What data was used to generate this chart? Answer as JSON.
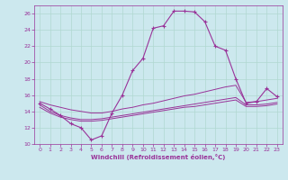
{
  "xlabel": "Windchill (Refroidissement éolien,°C)",
  "background_color": "#cce8ee",
  "grid_color": "#aaddcc",
  "line_color": "#993399",
  "xlim": [
    -0.5,
    23.5
  ],
  "ylim": [
    10,
    27
  ],
  "yticks": [
    10,
    12,
    14,
    16,
    18,
    20,
    22,
    24,
    26
  ],
  "xticks": [
    0,
    1,
    2,
    3,
    4,
    5,
    6,
    7,
    8,
    9,
    10,
    11,
    12,
    13,
    14,
    15,
    16,
    17,
    18,
    19,
    20,
    21,
    22,
    23
  ],
  "line1_x": [
    0,
    1,
    2,
    3,
    4,
    5,
    6,
    7,
    8,
    9,
    10,
    11,
    12,
    13,
    14,
    15,
    16,
    17,
    18,
    19,
    20,
    21,
    22,
    23
  ],
  "line1_y": [
    15.0,
    14.3,
    13.5,
    12.5,
    12.0,
    10.5,
    11.0,
    13.8,
    16.0,
    19.0,
    20.5,
    24.2,
    24.5,
    26.3,
    26.3,
    26.2,
    25.0,
    22.0,
    21.5,
    18.0,
    15.0,
    15.2,
    16.8,
    15.8
  ],
  "line2_x": [
    0,
    1,
    2,
    3,
    4,
    5,
    6,
    7,
    8,
    9,
    10,
    11,
    12,
    13,
    14,
    15,
    16,
    17,
    18,
    19,
    20,
    21,
    22,
    23
  ],
  "line2_y": [
    15.2,
    14.8,
    14.5,
    14.2,
    14.0,
    13.8,
    13.8,
    14.0,
    14.3,
    14.5,
    14.8,
    15.0,
    15.3,
    15.6,
    15.9,
    16.1,
    16.4,
    16.7,
    17.0,
    17.2,
    15.1,
    15.2,
    15.4,
    15.6
  ],
  "line3_x": [
    0,
    1,
    2,
    3,
    4,
    5,
    6,
    7,
    8,
    9,
    10,
    11,
    12,
    13,
    14,
    15,
    16,
    17,
    18,
    19,
    20,
    21,
    22,
    23
  ],
  "line3_y": [
    14.8,
    14.0,
    13.5,
    13.2,
    13.0,
    13.0,
    13.1,
    13.3,
    13.5,
    13.7,
    13.9,
    14.1,
    14.3,
    14.5,
    14.7,
    14.9,
    15.1,
    15.3,
    15.5,
    15.7,
    14.8,
    14.8,
    14.9,
    15.1
  ],
  "line4_x": [
    0,
    1,
    2,
    3,
    4,
    5,
    6,
    7,
    8,
    9,
    10,
    11,
    12,
    13,
    14,
    15,
    16,
    17,
    18,
    19,
    20,
    21,
    22,
    23
  ],
  "line4_y": [
    14.5,
    13.8,
    13.3,
    13.0,
    12.8,
    12.8,
    12.9,
    13.1,
    13.3,
    13.5,
    13.7,
    13.9,
    14.1,
    14.3,
    14.5,
    14.6,
    14.8,
    15.0,
    15.2,
    15.4,
    14.6,
    14.6,
    14.7,
    14.9
  ]
}
